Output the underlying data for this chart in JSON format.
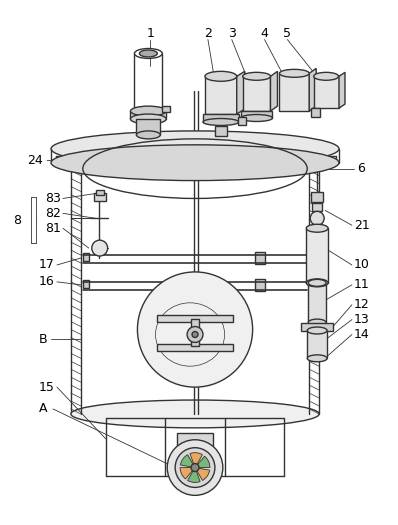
{
  "background_color": "#ffffff",
  "line_color": "#333333",
  "line_width": 1.0,
  "label_fontsize": 9,
  "fig_width": 3.98,
  "fig_height": 5.25,
  "dpi": 100
}
